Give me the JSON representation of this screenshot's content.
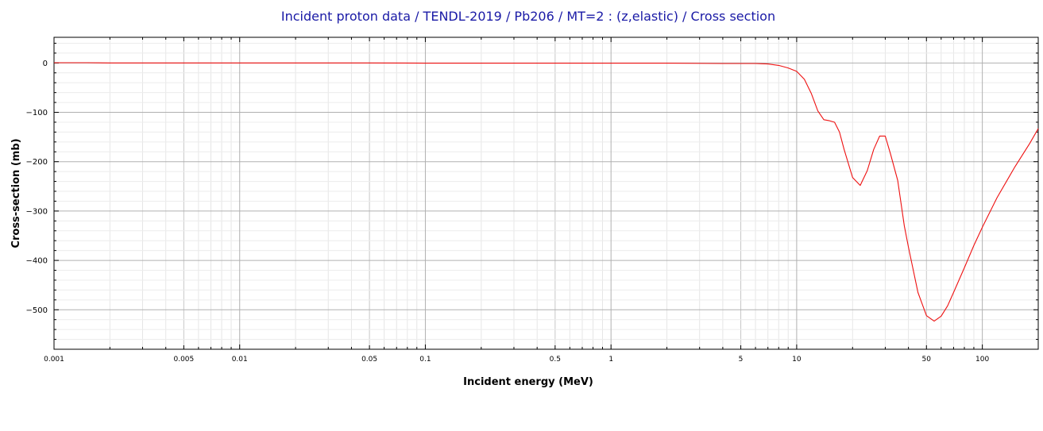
{
  "chart_data": {
    "type": "line",
    "title": "Incident proton data / TENDL-2019 / Pb206 / MT=2 : (z,elastic) / Cross section",
    "xlabel": "Incident energy (MeV)",
    "ylabel": "Cross-section (mb)",
    "x_scale": "log",
    "xlim": [
      0.001,
      200
    ],
    "ylim": [
      -580,
      52
    ],
    "grid": true,
    "x_ticks": [
      {
        "value": 0.001,
        "label": "0.001"
      },
      {
        "value": 0.005,
        "label": "0.005"
      },
      {
        "value": 0.01,
        "label": "0.01"
      },
      {
        "value": 0.05,
        "label": "0.05"
      },
      {
        "value": 0.1,
        "label": "0.1"
      },
      {
        "value": 0.5,
        "label": "0.5"
      },
      {
        "value": 1,
        "label": "1"
      },
      {
        "value": 5,
        "label": "5"
      },
      {
        "value": 10,
        "label": "10"
      },
      {
        "value": 50,
        "label": "50"
      },
      {
        "value": 100,
        "label": "100"
      }
    ],
    "y_ticks": [
      {
        "value": 0,
        "label": "0"
      },
      {
        "value": -100,
        "label": "−100"
      },
      {
        "value": -200,
        "label": "−200"
      },
      {
        "value": -300,
        "label": "−300"
      },
      {
        "value": -400,
        "label": "−400"
      },
      {
        "value": -500,
        "label": "−500"
      }
    ],
    "series": [
      {
        "color": "#ee1111",
        "x": [
          0.001,
          0.0015,
          0.002,
          0.005,
          0.01,
          0.05,
          0.1,
          0.5,
          1,
          2,
          4,
          6,
          6.5,
          7,
          8,
          9,
          10,
          11,
          12,
          13,
          14,
          15,
          16,
          17,
          18,
          20,
          22,
          24,
          26,
          28,
          30,
          32,
          35,
          38,
          40,
          45,
          50,
          55,
          60,
          65,
          70,
          80,
          90,
          100,
          120,
          150,
          180,
          200
        ],
        "y": [
          0.5,
          0.5,
          0,
          0,
          0,
          0,
          -0.5,
          -0.5,
          -0.5,
          -0.5,
          -1,
          -1,
          -1.5,
          -2,
          -5,
          -10,
          -17,
          -33,
          -62,
          -97,
          -115,
          -117,
          -120,
          -140,
          -175,
          -232,
          -248,
          -218,
          -175,
          -148,
          -148,
          -184,
          -238,
          -330,
          -373,
          -465,
          -512,
          -523,
          -513,
          -492,
          -465,
          -415,
          -370,
          -333,
          -273,
          -210,
          -163,
          -133
        ]
      }
    ]
  }
}
